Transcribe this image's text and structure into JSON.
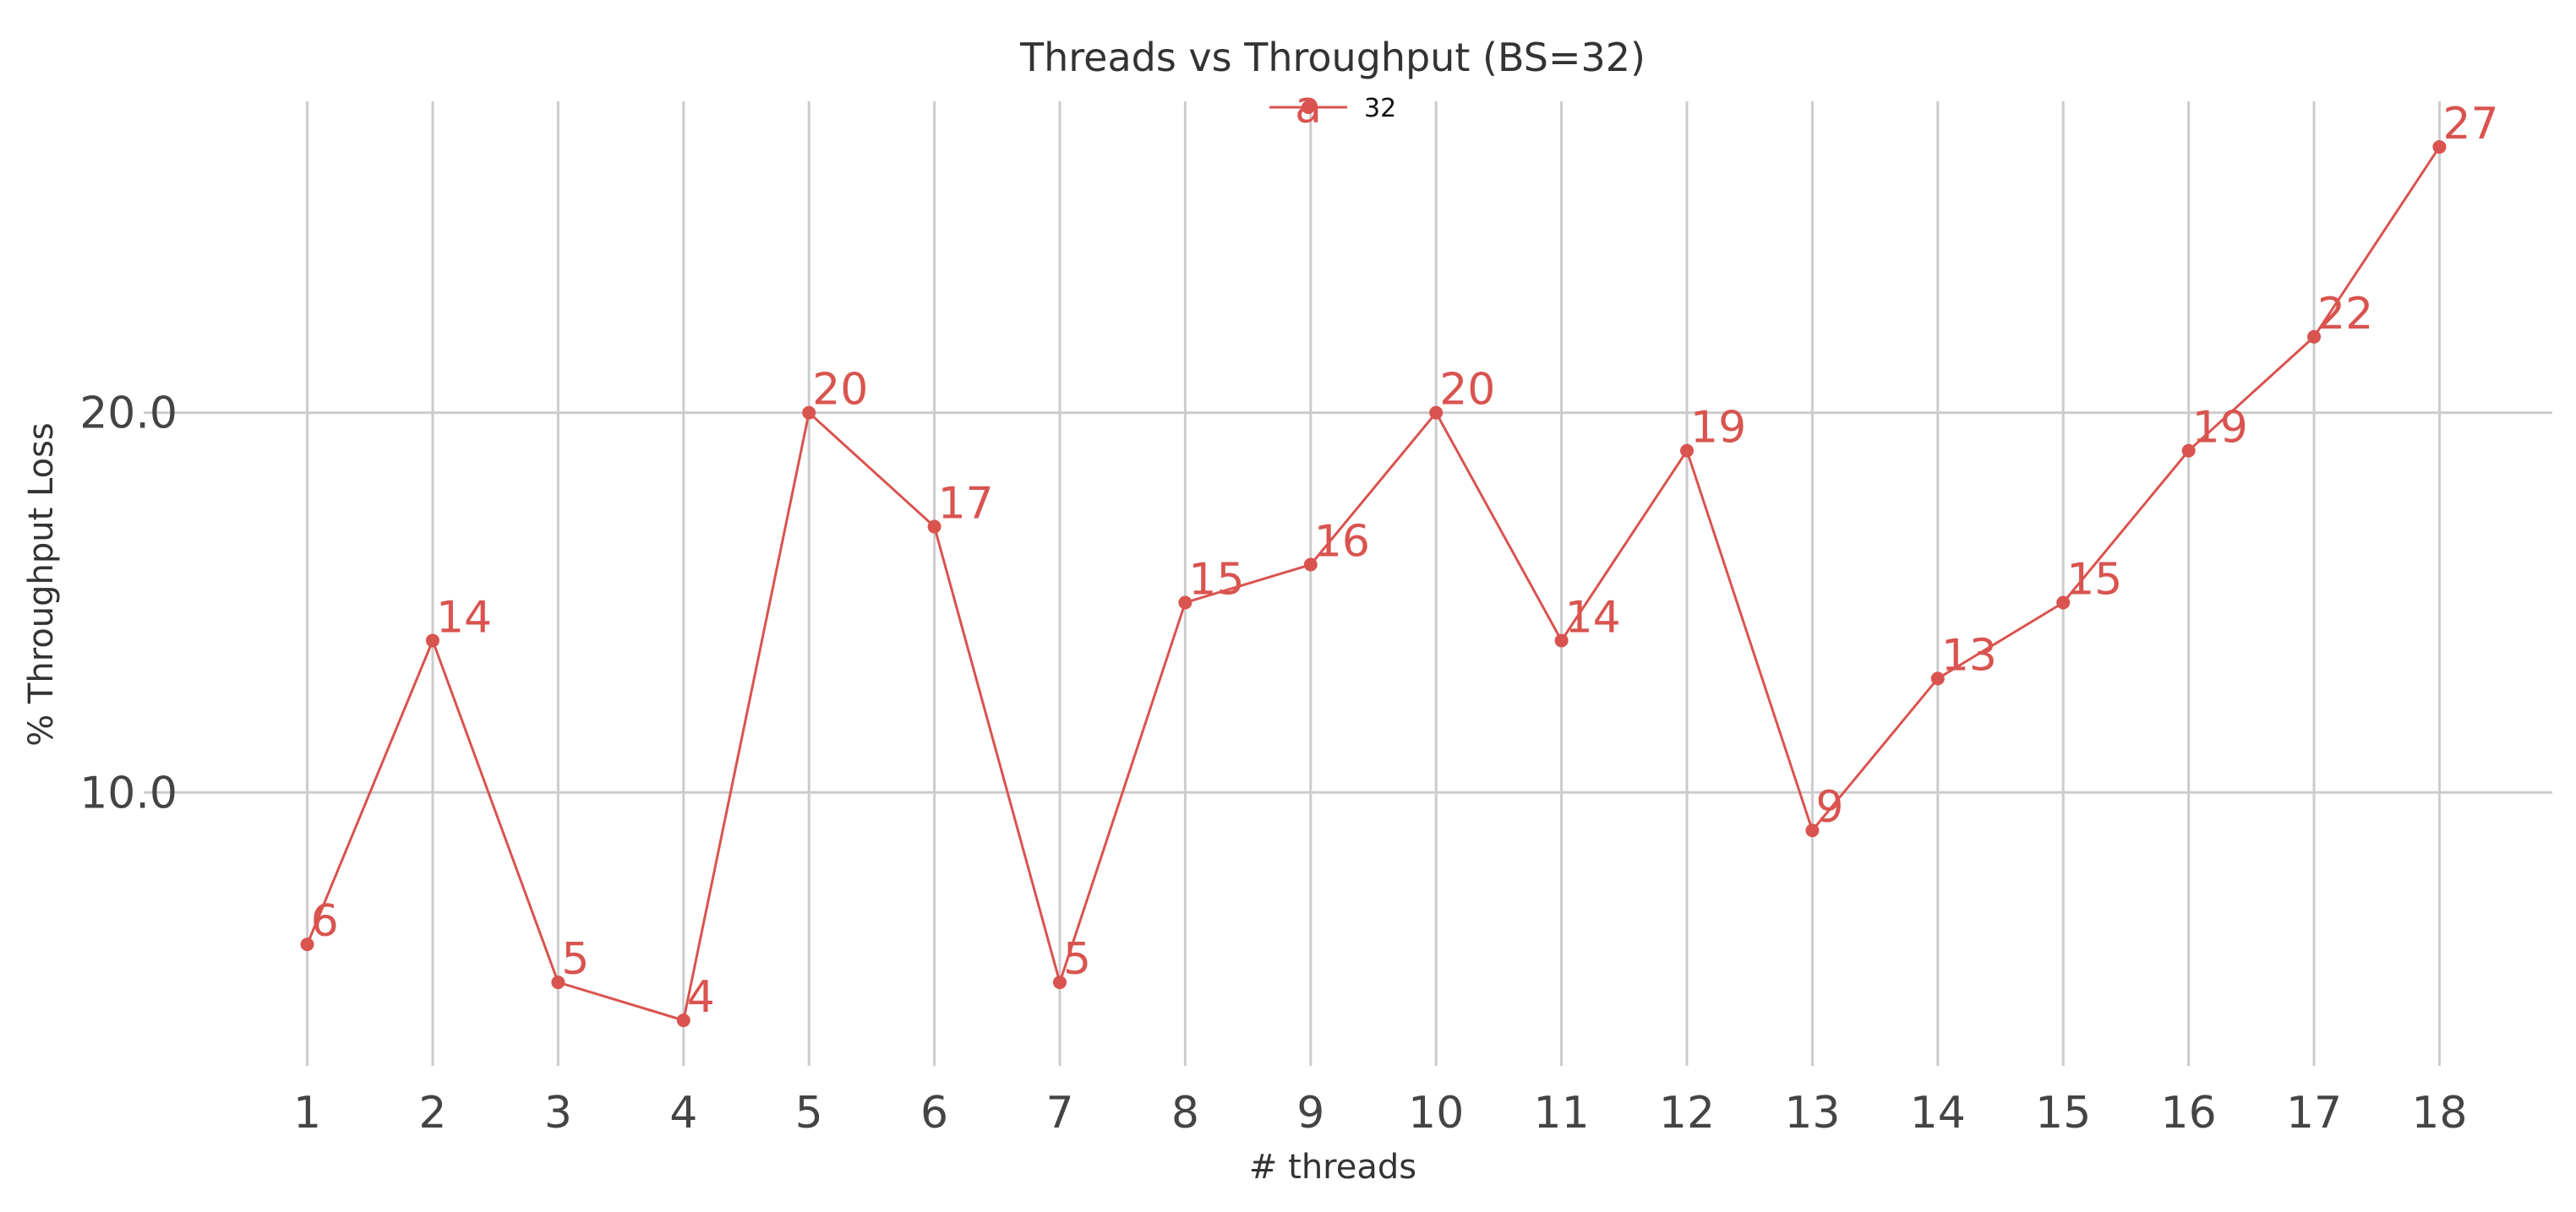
{
  "chart_data": {
    "type": "line",
    "title": "Threads vs Throughput (BS=32)",
    "xlabel": "# threads",
    "ylabel": "% Throughput Loss",
    "x": [
      1,
      2,
      3,
      4,
      5,
      6,
      7,
      8,
      9,
      10,
      11,
      12,
      13,
      14,
      15,
      16,
      17,
      18
    ],
    "x_ticks": [
      "1",
      "2",
      "3",
      "4",
      "5",
      "6",
      "7",
      "8",
      "9",
      "10",
      "11",
      "12",
      "13",
      "14",
      "15",
      "16",
      "17",
      "18"
    ],
    "y_ticks": [
      "10.0",
      "20.0"
    ],
    "y_tick_values": [
      10,
      20
    ],
    "ylim": [
      2.8,
      28.2
    ],
    "xlim": [
      0.1,
      18.9
    ],
    "grid": true,
    "legend": {
      "placement": "top-center",
      "marker_glyph": "a"
    },
    "series": [
      {
        "name": "32",
        "color": "#d9534f",
        "values": [
          6,
          14,
          5,
          4,
          20,
          17,
          5,
          15,
          16,
          20,
          14,
          19,
          9,
          13,
          15,
          19,
          22,
          27
        ],
        "labels": [
          "6",
          "14",
          "5",
          "4",
          "20",
          "17",
          "5",
          "15",
          "16",
          "20",
          "14",
          "19",
          "9",
          "13",
          "15",
          "19",
          "22",
          "27"
        ]
      }
    ]
  }
}
